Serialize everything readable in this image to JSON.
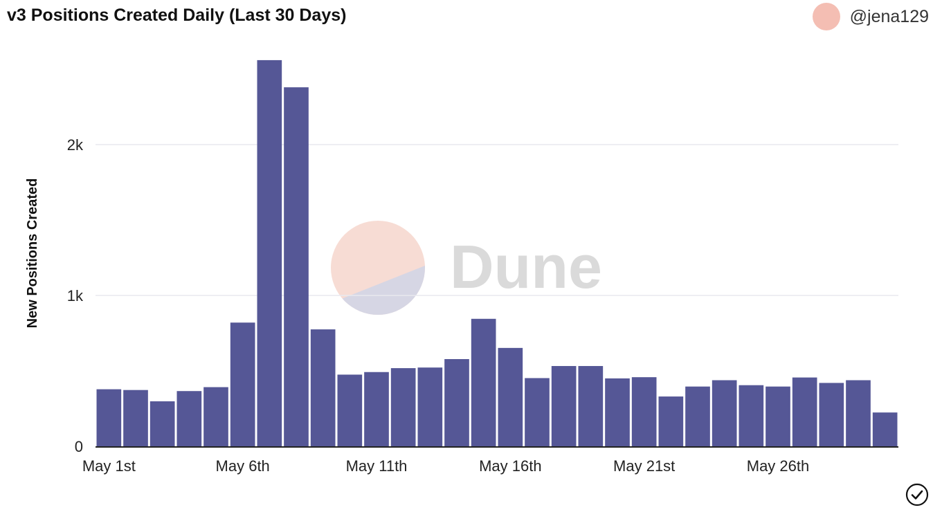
{
  "header": {
    "title": "v3 Positions Created Daily (Last 30 Days)",
    "author": "@jena129",
    "avatar_color": "#f4beb3"
  },
  "watermark": {
    "text": "Dune"
  },
  "colors": {
    "bar": "#555796",
    "grid": "#e9e9ef",
    "axis": "#222222"
  },
  "status": {
    "icon": "check-circle-icon"
  },
  "chart_data": {
    "type": "bar",
    "title": "v3 Positions Created Daily (Last 30 Days)",
    "xlabel": "",
    "ylabel": "New Positions Created",
    "ylim": [
      0,
      2600
    ],
    "yticks": [
      0,
      1000,
      2000
    ],
    "ytick_labels": [
      "0",
      "1k",
      "2k"
    ],
    "grid": true,
    "categories": [
      "May 1st",
      "May 2nd",
      "May 3rd",
      "May 4th",
      "May 5th",
      "May 6th",
      "May 7th",
      "May 8th",
      "May 9th",
      "May 10th",
      "May 11th",
      "May 12th",
      "May 13th",
      "May 14th",
      "May 15th",
      "May 16th",
      "May 17th",
      "May 18th",
      "May 19th",
      "May 20th",
      "May 21st",
      "May 22nd",
      "May 23rd",
      "May 24th",
      "May 25th",
      "May 26th",
      "May 27th",
      "May 28th",
      "May 29th",
      "May 30th"
    ],
    "xtick_labels": [
      "May 1st",
      "May 6th",
      "May 11th",
      "May 16th",
      "May 21st",
      "May 26th"
    ],
    "xtick_indices": [
      0,
      5,
      10,
      15,
      20,
      25
    ],
    "values": [
      378,
      373,
      298,
      366,
      392,
      820,
      2560,
      2380,
      775,
      475,
      492,
      518,
      522,
      578,
      845,
      652,
      452,
      532,
      532,
      450,
      458,
      330,
      396,
      438,
      405,
      396,
      456,
      420,
      438,
      224
    ]
  }
}
